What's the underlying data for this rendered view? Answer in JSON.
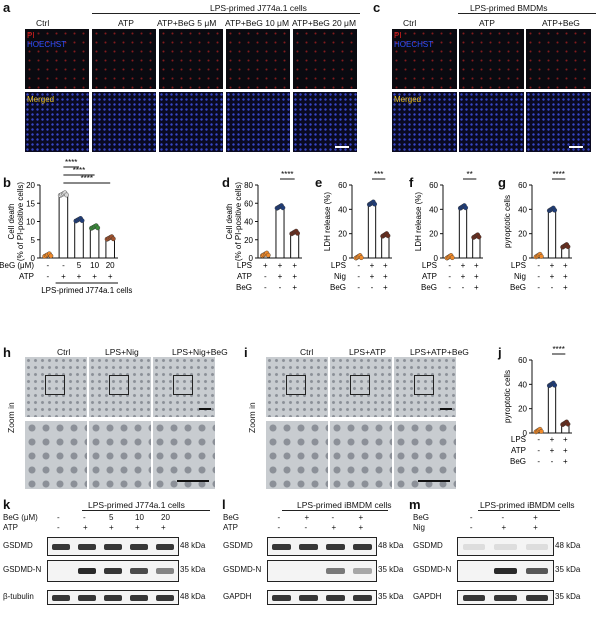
{
  "panels": {
    "a": {
      "letter": "a",
      "group": "LPS-primed J774a.1 cells",
      "cols": [
        "Ctrl",
        "ATP",
        "ATP+BeG 5 μM",
        "ATP+BeG 10 μM",
        "ATP+BeG 20 μM"
      ],
      "row1": [
        "PI",
        "HOECHST"
      ],
      "row2": "Merged"
    },
    "c": {
      "letter": "c",
      "group": "LPS-primed BMDMs",
      "cols": [
        "Ctrl",
        "ATP",
        "ATP+BeG"
      ],
      "row1": [
        "PI",
        "HOECHST"
      ],
      "row2": "Merged"
    },
    "h": {
      "letter": "h",
      "cols": [
        "Ctrl",
        "LPS+Nig",
        "LPS+Nig+BeG"
      ],
      "zoom": "Zoom in"
    },
    "i": {
      "letter": "i",
      "cols": [
        "Ctrl",
        "LPS+ATP",
        "LPS+ATP+BeG"
      ],
      "zoom": "Zoom in"
    },
    "k": {
      "letter": "k",
      "group": "LPS-primed J774a.1 cells",
      "rows": [
        {
          "label": "BeG (μM)",
          "vals": [
            "-",
            "-",
            "5",
            "10",
            "20"
          ]
        },
        {
          "label": "ATP",
          "vals": [
            "-",
            "+",
            "+",
            "+",
            "+"
          ]
        }
      ],
      "bands": [
        "GSDMD",
        "GSDMD-N",
        "β-tubulin"
      ],
      "markers": [
        "48 kDa",
        "35 kDa",
        "48 kDa"
      ]
    },
    "l": {
      "letter": "l",
      "group": "LPS-primed iBMDM cells",
      "rows": [
        {
          "label": "BeG",
          "vals": [
            "-",
            "+",
            "-",
            "+"
          ]
        },
        {
          "label": "ATP",
          "vals": [
            "-",
            "-",
            "+",
            "+"
          ]
        }
      ],
      "bands": [
        "GSDMD",
        "GSDMD-N",
        "GAPDH"
      ],
      "markers": [
        "48 kDa",
        "35 kDa",
        "35 kDa"
      ]
    },
    "m": {
      "letter": "m",
      "group": "LPS-primed iBMDM cells",
      "rows": [
        {
          "label": "BeG",
          "vals": [
            "-",
            "-",
            "+"
          ]
        },
        {
          "label": "Nig",
          "vals": [
            "-",
            "+",
            "+"
          ]
        }
      ],
      "bands": [
        "GSDMD",
        "GSDMD-N",
        "GAPDH"
      ],
      "markers": [
        "48 kDa",
        "35 kDa",
        "35 kDa"
      ]
    }
  },
  "chart_data": [
    {
      "panel": "b",
      "type": "bar",
      "ylabel": "Cell death (% of PI-positive cells)",
      "ylim": [
        0,
        20
      ],
      "yticks": [
        0,
        5,
        10,
        15,
        20
      ],
      "categories": [
        "1",
        "2",
        "3",
        "4",
        "5"
      ],
      "values": [
        0.8,
        17.5,
        10.5,
        8.5,
        5.5
      ],
      "sig": [
        {
          "from": 1,
          "to": 2,
          "text": "****"
        },
        {
          "from": 1,
          "to": 3,
          "text": "****"
        },
        {
          "from": 1,
          "to": 4,
          "text": "****"
        }
      ],
      "conditions": [
        {
          "label": "BeG (μM)",
          "vals": [
            "-",
            "-",
            "5",
            "10",
            "20"
          ]
        },
        {
          "label": "ATP",
          "vals": [
            "-",
            "+",
            "+",
            "+",
            "+"
          ]
        }
      ],
      "caption": "LPS-primed J774a.1 cells"
    },
    {
      "panel": "d",
      "type": "bar",
      "ylabel": "Cell death (% of PI-positive cells)",
      "ylim": [
        0,
        80
      ],
      "yticks": [
        0,
        20,
        40,
        60,
        80
      ],
      "categories": [
        "1",
        "2",
        "3"
      ],
      "values": [
        4,
        56,
        28
      ],
      "sig": [
        {
          "from": 1,
          "to": 2,
          "text": "****"
        }
      ],
      "conditions": [
        {
          "label": "LPS",
          "vals": [
            "+",
            "+",
            "+"
          ]
        },
        {
          "label": "ATP",
          "vals": [
            "-",
            "+",
            "+"
          ]
        },
        {
          "label": "BeG",
          "vals": [
            "-",
            "-",
            "+"
          ]
        }
      ]
    },
    {
      "panel": "e",
      "type": "bar",
      "ylabel": "LDH release (%)",
      "ylim": [
        0,
        60
      ],
      "yticks": [
        0,
        20,
        40,
        60
      ],
      "categories": [
        "1",
        "2",
        "3"
      ],
      "values": [
        1,
        45,
        19
      ],
      "sig": [
        {
          "from": 1,
          "to": 2,
          "text": "***"
        }
      ],
      "conditions": [
        {
          "label": "LPS",
          "vals": [
            "-",
            "+",
            "+"
          ]
        },
        {
          "label": "Nig",
          "vals": [
            "-",
            "+",
            "+"
          ]
        },
        {
          "label": "BeG",
          "vals": [
            "-",
            "-",
            "+"
          ]
        }
      ]
    },
    {
      "panel": "f",
      "type": "bar",
      "ylabel": "LDH release (%)",
      "ylim": [
        0,
        60
      ],
      "yticks": [
        0,
        20,
        40,
        60
      ],
      "categories": [
        "1",
        "2",
        "3"
      ],
      "values": [
        1,
        42,
        18
      ],
      "sig": [
        {
          "from": 1,
          "to": 2,
          "text": "**"
        }
      ],
      "conditions": [
        {
          "label": "LPS",
          "vals": [
            "-",
            "+",
            "+"
          ]
        },
        {
          "label": "ATP",
          "vals": [
            "-",
            "+",
            "+"
          ]
        },
        {
          "label": "BeG",
          "vals": [
            "-",
            "-",
            "+"
          ]
        }
      ]
    },
    {
      "panel": "g",
      "type": "bar",
      "ylabel": "pyroptotic cells",
      "ylim": [
        0,
        60
      ],
      "yticks": [
        0,
        20,
        40,
        60
      ],
      "categories": [
        "1",
        "2",
        "3"
      ],
      "values": [
        2,
        40,
        10
      ],
      "sig": [
        {
          "from": 1,
          "to": 2,
          "text": "****"
        }
      ],
      "conditions": [
        {
          "label": "LPS",
          "vals": [
            "-",
            "+",
            "+"
          ]
        },
        {
          "label": "Nig",
          "vals": [
            "-",
            "+",
            "+"
          ]
        },
        {
          "label": "BeG",
          "vals": [
            "-",
            "-",
            "+"
          ]
        }
      ]
    },
    {
      "panel": "j",
      "type": "bar",
      "ylabel": "pyroptotic cells",
      "ylim": [
        0,
        60
      ],
      "yticks": [
        0,
        20,
        40,
        60
      ],
      "categories": [
        "1",
        "2",
        "3"
      ],
      "values": [
        2,
        40,
        8
      ],
      "sig": [
        {
          "from": 1,
          "to": 2,
          "text": "****"
        }
      ],
      "conditions": [
        {
          "label": "LPS",
          "vals": [
            "-",
            "+",
            "+"
          ]
        },
        {
          "label": "ATP",
          "vals": [
            "-",
            "+",
            "+"
          ]
        },
        {
          "label": "BeG",
          "vals": [
            "-",
            "-",
            "+"
          ]
        }
      ]
    }
  ],
  "colors": {
    "pi": "#e02020",
    "hoechst": "#3050ff",
    "merged": "#e8c020",
    "orange": "#f08a2a",
    "navy": "#1f3d7a",
    "dark_brown": "#6b2e1e",
    "green": "#3a8a3a",
    "brown": "#a0522d",
    "phase": "#c8ccd0"
  }
}
